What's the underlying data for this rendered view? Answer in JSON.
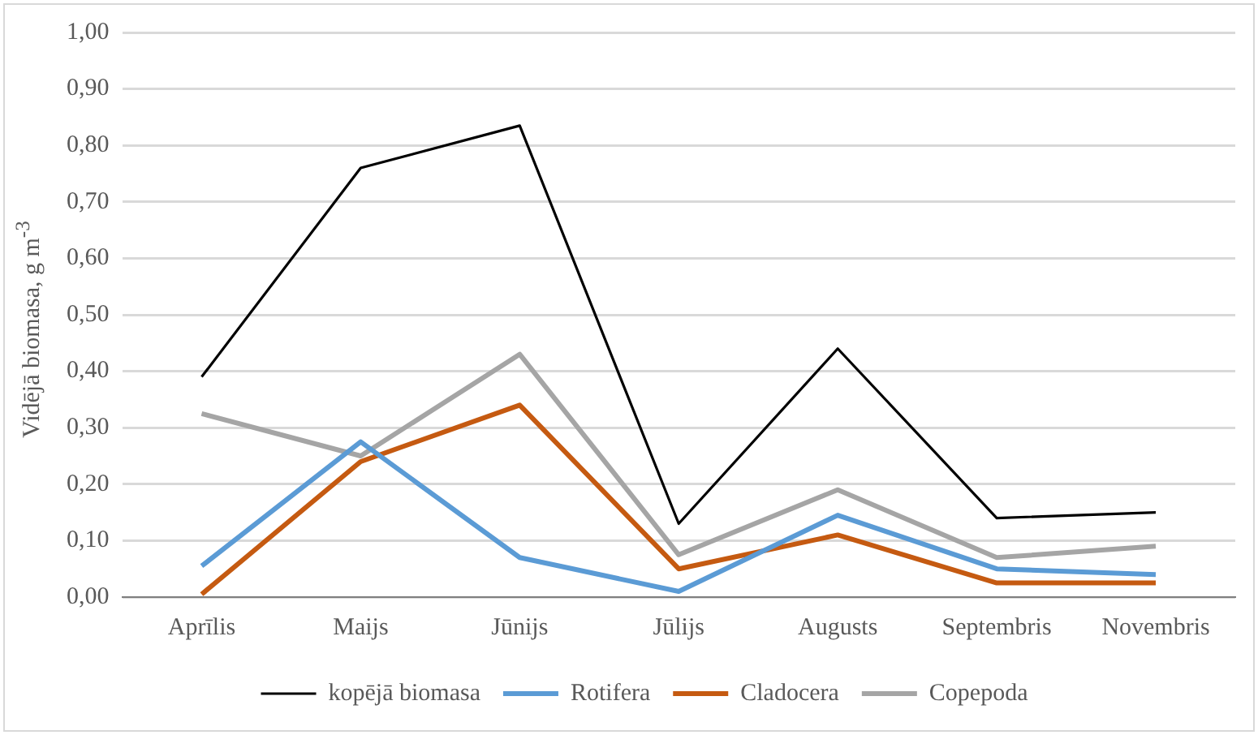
{
  "chart_data": {
    "type": "line",
    "ylabel": "Vidējā biomasa, g m$^{-3}$",
    "categories": [
      "Aprīlis",
      "Maijs",
      "Jūnijs",
      "Jūlijs",
      "Augusts",
      "Septembris",
      "Novembris"
    ],
    "series": [
      {
        "name": "kopējā biomasa",
        "color": "#000000",
        "values": [
          0.39,
          0.76,
          0.835,
          0.13,
          0.44,
          0.14,
          0.15
        ]
      },
      {
        "name": "Rotifera",
        "color": "#5b9bd5",
        "values": [
          0.055,
          0.275,
          0.07,
          0.01,
          0.145,
          0.05,
          0.04
        ]
      },
      {
        "name": "Cladocera",
        "color": "#c55a11",
        "values": [
          0.005,
          0.24,
          0.34,
          0.05,
          0.11,
          0.025,
          0.025
        ]
      },
      {
        "name": "Copepoda",
        "color": "#a5a5a5",
        "values": [
          0.325,
          0.25,
          0.43,
          0.075,
          0.19,
          0.07,
          0.09
        ]
      }
    ],
    "ylim": [
      0,
      1
    ],
    "yticks": [
      {
        "value": 0,
        "label": "0,00"
      },
      {
        "value": 0.1,
        "label": "0,10"
      },
      {
        "value": 0.2,
        "label": "0,20"
      },
      {
        "value": 0.3,
        "label": "0,30"
      },
      {
        "value": 0.4,
        "label": "0,40"
      },
      {
        "value": 0.5,
        "label": "0,50"
      },
      {
        "value": 0.6,
        "label": "0,60"
      },
      {
        "value": 0.7,
        "label": "0,70"
      },
      {
        "value": 0.8,
        "label": "0,80"
      },
      {
        "value": 0.9,
        "label": "0,90"
      },
      {
        "value": 1,
        "label": "1,00"
      }
    ],
    "grid": "y",
    "legend": "bottom",
    "marker": "none",
    "line_style": "solid"
  }
}
